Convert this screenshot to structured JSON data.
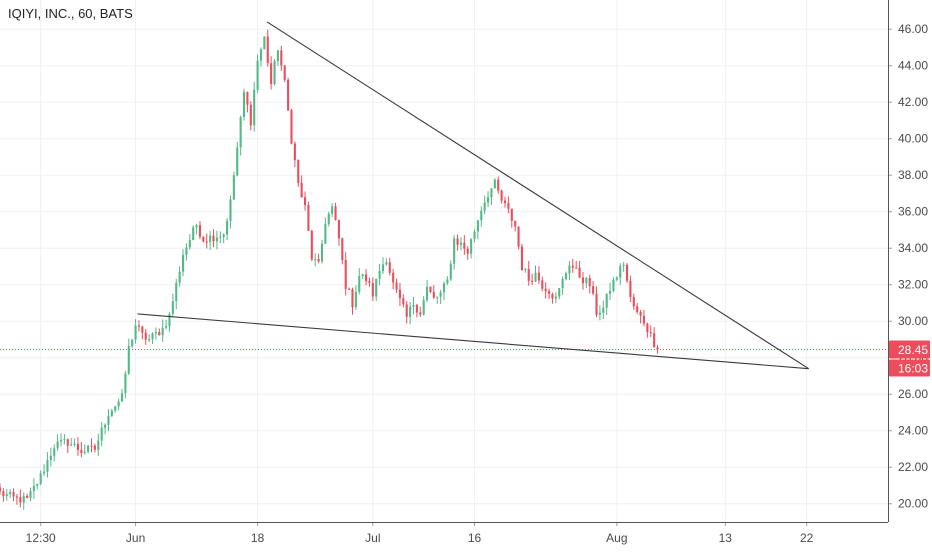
{
  "header": {
    "symbol_title": "IQIYI, INC., 60, BATS"
  },
  "colors": {
    "up": "#53b987",
    "down": "#eb4d5c",
    "grid": "#eef0f3",
    "axis_text": "#4a4a4a",
    "trendline": "#3a3a3a",
    "price_line": "#eb4d5c"
  },
  "price_label": {
    "value": "28.45",
    "countdown": "16:03"
  },
  "chart_data": {
    "type": "candlestick",
    "title": "IQIYI, INC., 60, BATS",
    "xlabel": "",
    "ylabel": "",
    "ylim": [
      19,
      47.6
    ],
    "grid": true,
    "y_ticks": [
      "20.00",
      "22.00",
      "24.00",
      "26.00",
      "28.00",
      "30.00",
      "32.00",
      "34.00",
      "36.00",
      "38.00",
      "40.00",
      "42.00",
      "44.00",
      "46.00"
    ],
    "x_ticks": [
      {
        "label": "12:30",
        "t": 6
      },
      {
        "label": "Jun",
        "t": 20
      },
      {
        "label": "18",
        "t": 38
      },
      {
        "label": "Jul",
        "t": 55
      },
      {
        "label": "16",
        "t": 70
      },
      {
        "label": "Aug",
        "t": 91
      },
      {
        "label": "13",
        "t": 107
      },
      {
        "label": "22",
        "t": 119
      }
    ],
    "x_range": [
      0,
      131
    ],
    "last_price": 28.45,
    "path": [
      [
        0,
        20.6
      ],
      [
        2,
        20.3
      ],
      [
        4,
        20.2
      ],
      [
        6,
        21.5
      ],
      [
        8,
        23.2
      ],
      [
        10,
        23.4
      ],
      [
        12,
        22.9
      ],
      [
        14,
        23.0
      ],
      [
        16,
        25.0
      ],
      [
        18,
        25.8
      ],
      [
        19,
        28.5
      ],
      [
        20,
        29.8
      ],
      [
        21,
        29.2
      ],
      [
        22,
        29.0
      ],
      [
        24,
        29.6
      ],
      [
        25,
        30.3
      ],
      [
        27,
        33.7
      ],
      [
        29,
        35.3
      ],
      [
        30,
        34.5
      ],
      [
        33,
        34.8
      ],
      [
        34,
        36.5
      ],
      [
        36,
        42.5
      ],
      [
        37,
        41.0
      ],
      [
        38,
        44.3
      ],
      [
        39,
        45.5
      ],
      [
        40,
        43.0
      ],
      [
        41,
        45.0
      ],
      [
        42,
        43.0
      ],
      [
        43,
        40.0
      ],
      [
        44,
        37.5
      ],
      [
        45,
        36.2
      ],
      [
        46,
        33.5
      ],
      [
        47,
        33.0
      ],
      [
        48,
        35.5
      ],
      [
        49,
        36.2
      ],
      [
        50,
        34.5
      ],
      [
        51,
        32.0
      ],
      [
        52,
        31.0
      ],
      [
        53,
        32.5
      ],
      [
        54,
        32.3
      ],
      [
        55,
        31.5
      ],
      [
        56,
        32.8
      ],
      [
        57,
        33.5
      ],
      [
        58,
        32.0
      ],
      [
        60,
        30.2
      ],
      [
        61,
        31.0
      ],
      [
        62,
        30.5
      ],
      [
        63,
        31.8
      ],
      [
        64,
        31.2
      ],
      [
        65,
        31.5
      ],
      [
        66,
        32.2
      ],
      [
        67,
        34.5
      ],
      [
        68,
        34.2
      ],
      [
        69,
        33.8
      ],
      [
        70,
        35.0
      ],
      [
        71,
        36.2
      ],
      [
        72,
        37.0
      ],
      [
        73,
        37.5
      ],
      [
        74,
        36.6
      ],
      [
        75,
        36.0
      ],
      [
        76,
        35.2
      ],
      [
        77,
        33.0
      ],
      [
        78,
        32.3
      ],
      [
        79,
        32.6
      ],
      [
        80,
        32.0
      ],
      [
        81,
        31.7
      ],
      [
        82,
        31.2
      ],
      [
        83,
        32.2
      ],
      [
        84,
        33.2
      ],
      [
        85,
        32.7
      ],
      [
        86,
        32.3
      ],
      [
        87,
        32.0
      ],
      [
        88,
        30.5
      ],
      [
        89,
        30.7
      ],
      [
        90,
        31.8
      ],
      [
        91,
        32.5
      ],
      [
        92,
        33.2
      ],
      [
        93,
        31.2
      ],
      [
        94,
        30.4
      ],
      [
        95,
        30.0
      ],
      [
        96,
        29.2
      ],
      [
        97,
        28.45
      ]
    ],
    "annotations": [
      {
        "type": "trendline",
        "name": "upper",
        "from": [
          39.4,
          46.4
        ],
        "to": [
          119.3,
          27.4
        ]
      },
      {
        "type": "trendline",
        "name": "lower",
        "from": [
          20.3,
          30.4
        ],
        "to": [
          119.3,
          27.4
        ]
      }
    ]
  }
}
